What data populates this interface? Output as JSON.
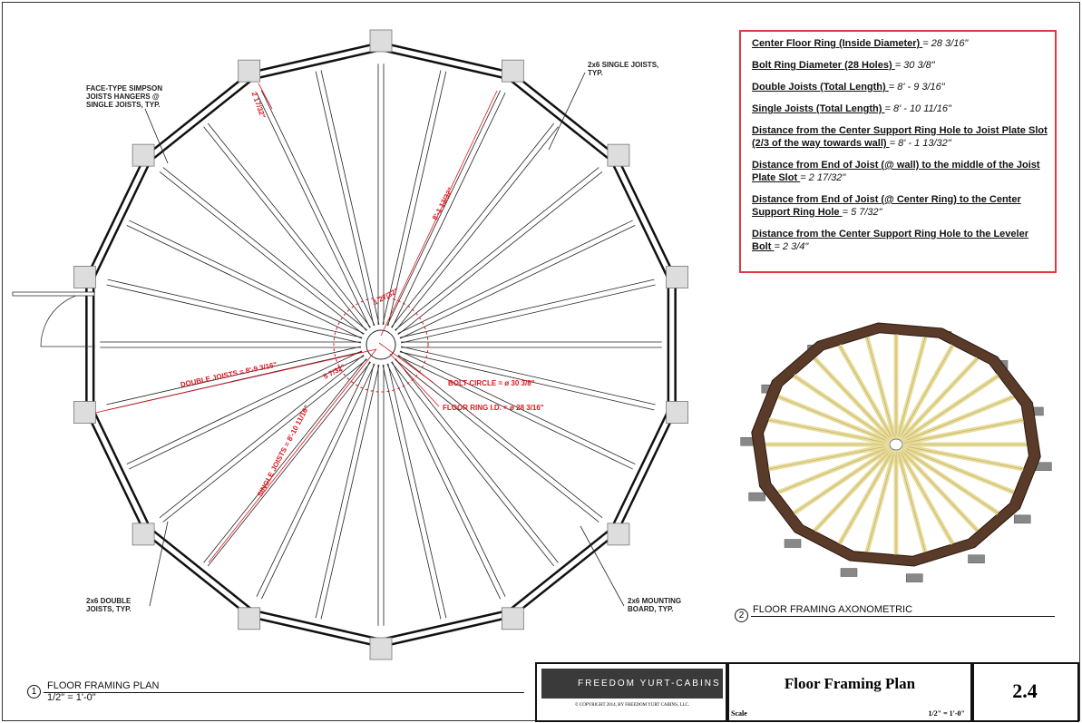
{
  "notes": [
    {
      "key": "Center Floor Ring (Inside Diameter) ",
      "value": "= 28 3/16\""
    },
    {
      "key": "Bolt Ring Diameter (28 Holes) ",
      "value": "= 30 3/8\""
    },
    {
      "key": "Double Joists (Total Length) ",
      "value": "= 8' - 9 3/16\""
    },
    {
      "key": "Single Joists (Total Length) ",
      "value": "= 8' - 10 11/16\""
    },
    {
      "key": "Distance from the Center Support Ring Hole to Joist Plate Slot  (2/3 of the way towards wall) ",
      "value": "= 8' - 1 13/32\""
    },
    {
      "key": "Distance from End of Joist (@ wall) to the middle of the Joist Plate Slot ",
      "value": "= 2 17/32\""
    },
    {
      "key": "Distance from End of Joist (@ Center Ring) to the Center Support Ring Hole ",
      "value": "= 5 7/32\""
    },
    {
      "key": "Distance from the Center Support Ring Hole to the Leveler Bolt ",
      "value": "= 2 3/4\""
    }
  ],
  "callouts": {
    "hangers": "FACE-TYPE SIMPSON JOISTS HANGERS @ SINGLE JOISTS, TYP.",
    "single": "2x6 SINGLE JOISTS, TYP.",
    "double": "2x6 DOUBLE JOISTS, TYP.",
    "mounting": "2x6 MOUNTING BOARD, TYP."
  },
  "dimensions": {
    "wall_end": "2 17/32\"",
    "slot": "8'-1 13/32\"",
    "ring_gap": "1 27/32\"",
    "center_end": "5 7/32\"",
    "double_joists": "DOUBLE JOISTS = 8'-9 3/16\"",
    "single_joists": "SINGLE JOISTS = 8'-10 11/16\"",
    "bolt_circle": "BOLT CIRCLE = ø 30 3/8\"",
    "floor_ring": "FLOOR RING I.D. = ø 28 3/16\""
  },
  "views": [
    {
      "number": "1",
      "title": "FLOOR FRAMING PLAN",
      "scale": "1/2\" = 1'-0\""
    },
    {
      "number": "2",
      "title": "FLOOR FRAMING AXONOMETRIC"
    }
  ],
  "title_block": {
    "brand": "FREEDOM YURT-CABINS",
    "copyright": "© COPYRIGHT 2014, BY FREEDOM YURT CABINS, LLC.",
    "sheet_title": "Floor Framing Plan",
    "scale_label": "Scale",
    "scale_value": "1/2\" = 1'-0\"",
    "sheet_number": "2.4"
  },
  "colors": {
    "dimension": "#e0141e",
    "wood": "#e8dc9a",
    "rim": "#5a3a28"
  }
}
